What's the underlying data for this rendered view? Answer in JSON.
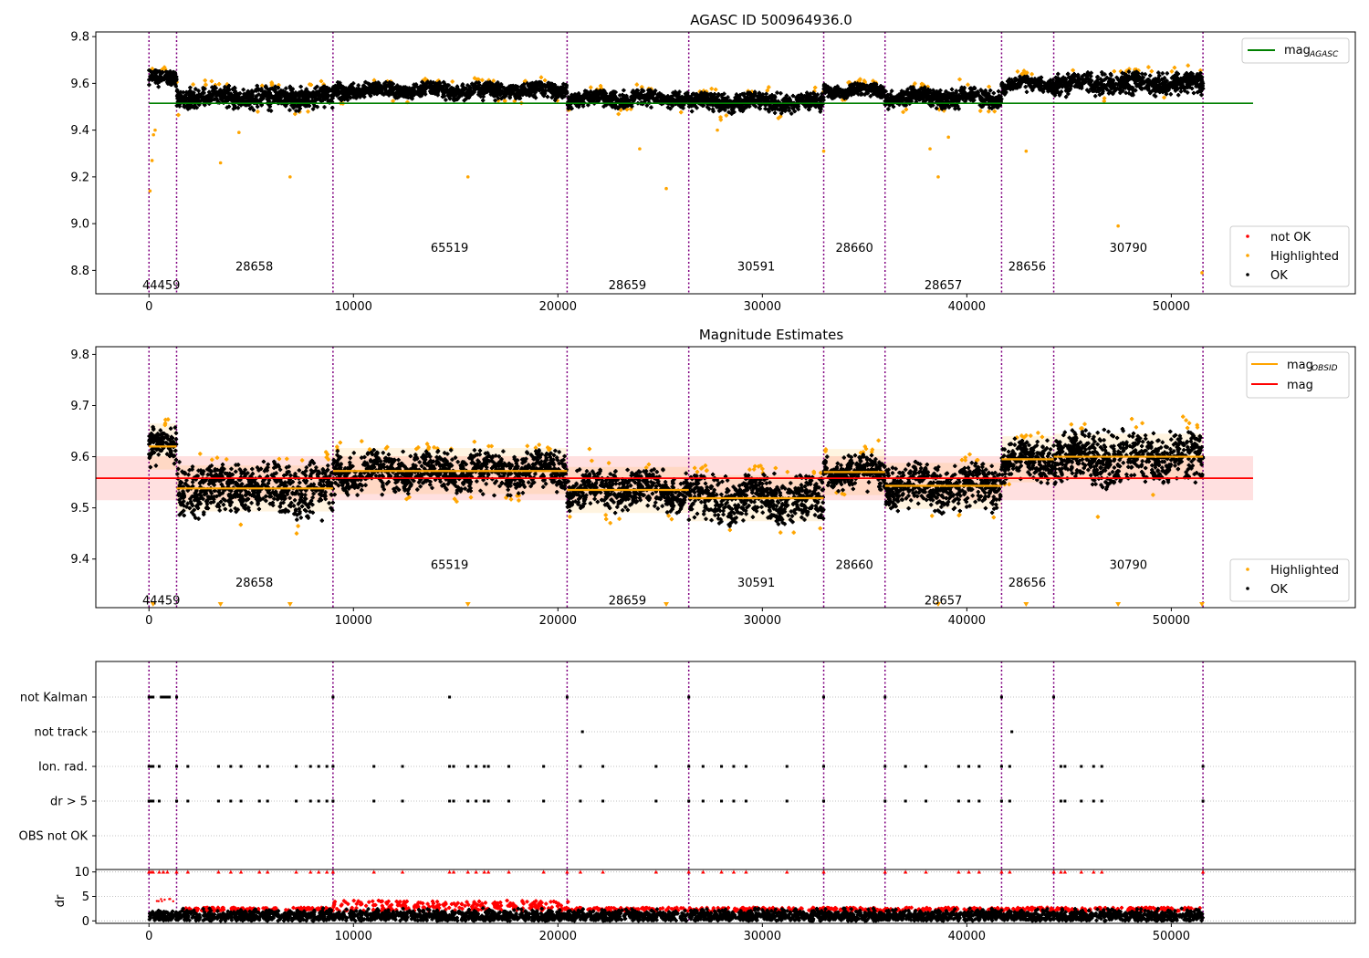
{
  "chart_data": [
    {
      "type": "scatter",
      "title": "AGASC ID 500964936.0",
      "xlim": [
        -2600,
        59000
      ],
      "ylim": [
        8.7,
        9.82
      ],
      "xticks": [
        0,
        10000,
        20000,
        30000,
        40000,
        50000
      ],
      "xtick_labels": [
        "0",
        "10000",
        "20000",
        "30000",
        "40000",
        "50000"
      ],
      "yticks": [
        8.8,
        9.0,
        9.2,
        9.4,
        9.6,
        9.8
      ],
      "ytick_labels": [
        "8.8",
        "9.0",
        "9.2",
        "9.4",
        "9.6",
        "9.8"
      ],
      "obs_boundaries": [
        0,
        1350,
        9000,
        20450,
        26400,
        33000,
        36000,
        41700,
        44250,
        51550
      ],
      "obsids": [
        {
          "label": "44459",
          "x": 600,
          "y": 8.74
        },
        {
          "label": "28658",
          "x": 5150,
          "y": 8.82
        },
        {
          "label": "65519",
          "x": 14700,
          "y": 8.9
        },
        {
          "label": "28659",
          "x": 23400,
          "y": 8.74
        },
        {
          "label": "30591",
          "x": 29700,
          "y": 8.82
        },
        {
          "label": "28660",
          "x": 34500,
          "y": 8.9
        },
        {
          "label": "28657",
          "x": 38850,
          "y": 8.74
        },
        {
          "label": "28656",
          "x": 42950,
          "y": 8.82
        },
        {
          "label": "30790",
          "x": 47900,
          "y": 8.9
        }
      ],
      "series": [
        {
          "name": "mag_AGASC",
          "kind": "hline",
          "y": 9.515,
          "x_range": [
            0,
            54000
          ],
          "color": "#008000"
        }
      ],
      "segments": [
        {
          "x0": 0,
          "x1": 1350,
          "mean": 9.62,
          "spread": 0.03
        },
        {
          "x0": 1350,
          "x1": 9000,
          "mean": 9.54,
          "spread": 0.04
        },
        {
          "x0": 9000,
          "x1": 20450,
          "mean": 9.57,
          "spread": 0.03
        },
        {
          "x0": 20450,
          "x1": 26400,
          "mean": 9.535,
          "spread": 0.03
        },
        {
          "x0": 26400,
          "x1": 33000,
          "mean": 9.52,
          "spread": 0.035
        },
        {
          "x0": 33000,
          "x1": 36000,
          "mean": 9.57,
          "spread": 0.025
        },
        {
          "x0": 36000,
          "x1": 41700,
          "mean": 9.54,
          "spread": 0.035
        },
        {
          "x0": 41700,
          "x1": 44250,
          "mean": 9.595,
          "spread": 0.03
        },
        {
          "x0": 44250,
          "x1": 51550,
          "mean": 9.6,
          "spread": 0.04
        }
      ],
      "outliers": [
        {
          "x": 50,
          "y": 9.14
        },
        {
          "x": 150,
          "y": 9.27
        },
        {
          "x": 220,
          "y": 9.38
        },
        {
          "x": 300,
          "y": 9.4
        },
        {
          "x": 3500,
          "y": 9.26
        },
        {
          "x": 4400,
          "y": 9.39
        },
        {
          "x": 6900,
          "y": 9.2
        },
        {
          "x": 15600,
          "y": 9.2
        },
        {
          "x": 24000,
          "y": 9.32
        },
        {
          "x": 25300,
          "y": 9.15
        },
        {
          "x": 27800,
          "y": 9.4
        },
        {
          "x": 33000,
          "y": 9.31
        },
        {
          "x": 38200,
          "y": 9.32
        },
        {
          "x": 38600,
          "y": 9.2
        },
        {
          "x": 39100,
          "y": 9.37
        },
        {
          "x": 42900,
          "y": 9.31
        },
        {
          "x": 47400,
          "y": 8.99
        },
        {
          "x": 51500,
          "y": 8.79
        }
      ],
      "legend": [
        {
          "label": "mag",
          "subscript": "AGASC",
          "kind": "line",
          "color": "#008000"
        }
      ],
      "legend2": [
        {
          "label": "not OK",
          "kind": "dot",
          "color": "#ff0000"
        },
        {
          "label": "Highlighted",
          "kind": "dot",
          "color": "#ffa500"
        },
        {
          "label": "OK",
          "kind": "dot",
          "color": "#000000"
        }
      ],
      "legend_loc": "upper right / lower right"
    },
    {
      "type": "scatter",
      "title": "Magnitude Estimates",
      "xlim": [
        -2600,
        59000
      ],
      "ylim": [
        9.305,
        9.815
      ],
      "xticks": [
        0,
        10000,
        20000,
        30000,
        40000,
        50000
      ],
      "xtick_labels": [
        "0",
        "10000",
        "20000",
        "30000",
        "40000",
        "50000"
      ],
      "yticks": [
        9.4,
        9.5,
        9.6,
        9.7,
        9.8
      ],
      "ytick_labels": [
        "9.4",
        "9.5",
        "9.6",
        "9.7",
        "9.8"
      ],
      "mag": {
        "value": 9.558,
        "band": [
          9.515,
          9.601
        ],
        "x_range": [
          -2600,
          54000
        ],
        "color": "#ff0000"
      },
      "mag_obsid": [
        {
          "x0": 0,
          "x1": 1350,
          "y": 9.62
        },
        {
          "x0": 1350,
          "x1": 9000,
          "y": 9.538
        },
        {
          "x0": 9000,
          "x1": 20450,
          "y": 9.572
        },
        {
          "x0": 20450,
          "x1": 26400,
          "y": 9.535
        },
        {
          "x0": 26400,
          "x1": 33000,
          "y": 9.519
        },
        {
          "x0": 33000,
          "x1": 36000,
          "y": 9.57
        },
        {
          "x0": 36000,
          "x1": 41700,
          "y": 9.543
        },
        {
          "x0": 41700,
          "x1": 44250,
          "y": 9.595
        },
        {
          "x0": 44250,
          "x1": 51550,
          "y": 9.6
        }
      ],
      "obsids": [
        {
          "label": "44459",
          "x": 600,
          "y": 9.32
        },
        {
          "label": "28658",
          "x": 5150,
          "y": 9.355
        },
        {
          "label": "65519",
          "x": 14700,
          "y": 9.39
        },
        {
          "label": "28659",
          "x": 23400,
          "y": 9.32
        },
        {
          "label": "30591",
          "x": 29700,
          "y": 9.355
        },
        {
          "label": "28660",
          "x": 34500,
          "y": 9.39
        },
        {
          "label": "28657",
          "x": 38850,
          "y": 9.32
        },
        {
          "label": "28656",
          "x": 42950,
          "y": 9.355
        },
        {
          "label": "30790",
          "x": 47900,
          "y": 9.39
        }
      ],
      "below_markers": [
        200,
        3500,
        6900,
        15600,
        25300,
        38600,
        42900,
        47400,
        51500
      ],
      "legend": [
        {
          "label": "mag",
          "subscript": "OBSID",
          "kind": "line",
          "color": "#ffa500"
        },
        {
          "label": "mag",
          "kind": "line",
          "color": "#ff0000"
        }
      ],
      "legend2": [
        {
          "label": "Highlighted",
          "kind": "dot",
          "color": "#ffa500"
        },
        {
          "label": "OK",
          "kind": "dot",
          "color": "#000000"
        }
      ],
      "legend_loc": "upper right / lower right"
    },
    {
      "type": "scatter",
      "title": "",
      "xlim": [
        -2600,
        59000
      ],
      "categories": [
        "not Kalman",
        "not track",
        "Ion. rad.",
        "dr > 5",
        "OBS not OK"
      ],
      "flags": {
        "not Kalman": [
          0,
          100,
          200,
          600,
          700,
          800,
          900,
          1000,
          1350,
          9000,
          14700,
          20450,
          26400,
          33000,
          36000,
          41700,
          44250
        ],
        "not track": [
          21200,
          42200
        ],
        "Ion. rad.": [
          0,
          100,
          200,
          500,
          1350,
          1900,
          3400,
          4000,
          4500,
          5400,
          5800,
          7200,
          7900,
          8300,
          8700,
          9000,
          11000,
          12400,
          14700,
          14900,
          15600,
          16000,
          16400,
          16600,
          17600,
          19300,
          21100,
          22200,
          24800,
          26400,
          27100,
          28000,
          28600,
          29200,
          31200,
          33000,
          36000,
          37000,
          38000,
          39600,
          40100,
          40600,
          41700,
          42100,
          44600,
          44800,
          45600,
          46200,
          46600,
          51550
        ],
        "dr > 5": [
          0,
          100,
          200,
          500,
          1350,
          1900,
          3400,
          4000,
          4500,
          5400,
          5800,
          7200,
          7900,
          8300,
          8700,
          9000,
          11000,
          12400,
          14700,
          14900,
          15600,
          16000,
          16400,
          16600,
          17600,
          19300,
          21100,
          22200,
          24800,
          26400,
          27100,
          28000,
          28600,
          29200,
          31200,
          33000,
          36000,
          37000,
          38000,
          39600,
          40100,
          40600,
          41700,
          42100,
          44600,
          44800,
          45600,
          46200,
          46600,
          51550
        ],
        "OBS not OK": []
      }
    },
    {
      "type": "scatter",
      "title": "",
      "ylabel": "dr",
      "xlim": [
        -2600,
        59000
      ],
      "ylim": [
        -0.5,
        10.5
      ],
      "yticks": [
        0,
        5,
        10
      ],
      "ytick_labels": [
        "0",
        "5",
        "10"
      ],
      "xticks": [
        0,
        10000,
        20000,
        30000,
        40000,
        50000
      ],
      "xtick_labels": [
        "0",
        "10000",
        "20000",
        "30000",
        "40000",
        "50000"
      ],
      "dr_typical": [
        0,
        3
      ],
      "dr_flagged_x": [
        0,
        100,
        200,
        500,
        700,
        900,
        1350,
        1900,
        3400,
        4000,
        4500,
        5400,
        5800,
        7200,
        7900,
        8300,
        8700,
        9000,
        11000,
        12400,
        14700,
        14900,
        15600,
        16000,
        16400,
        16600,
        17600,
        19300,
        20450,
        21100,
        22200,
        24800,
        26400,
        27100,
        28000,
        28600,
        29200,
        31200,
        33000,
        36000,
        37000,
        38000,
        39600,
        40100,
        40600,
        41700,
        42100,
        44250,
        44600,
        44800,
        45600,
        46200,
        46600,
        51550
      ]
    }
  ]
}
